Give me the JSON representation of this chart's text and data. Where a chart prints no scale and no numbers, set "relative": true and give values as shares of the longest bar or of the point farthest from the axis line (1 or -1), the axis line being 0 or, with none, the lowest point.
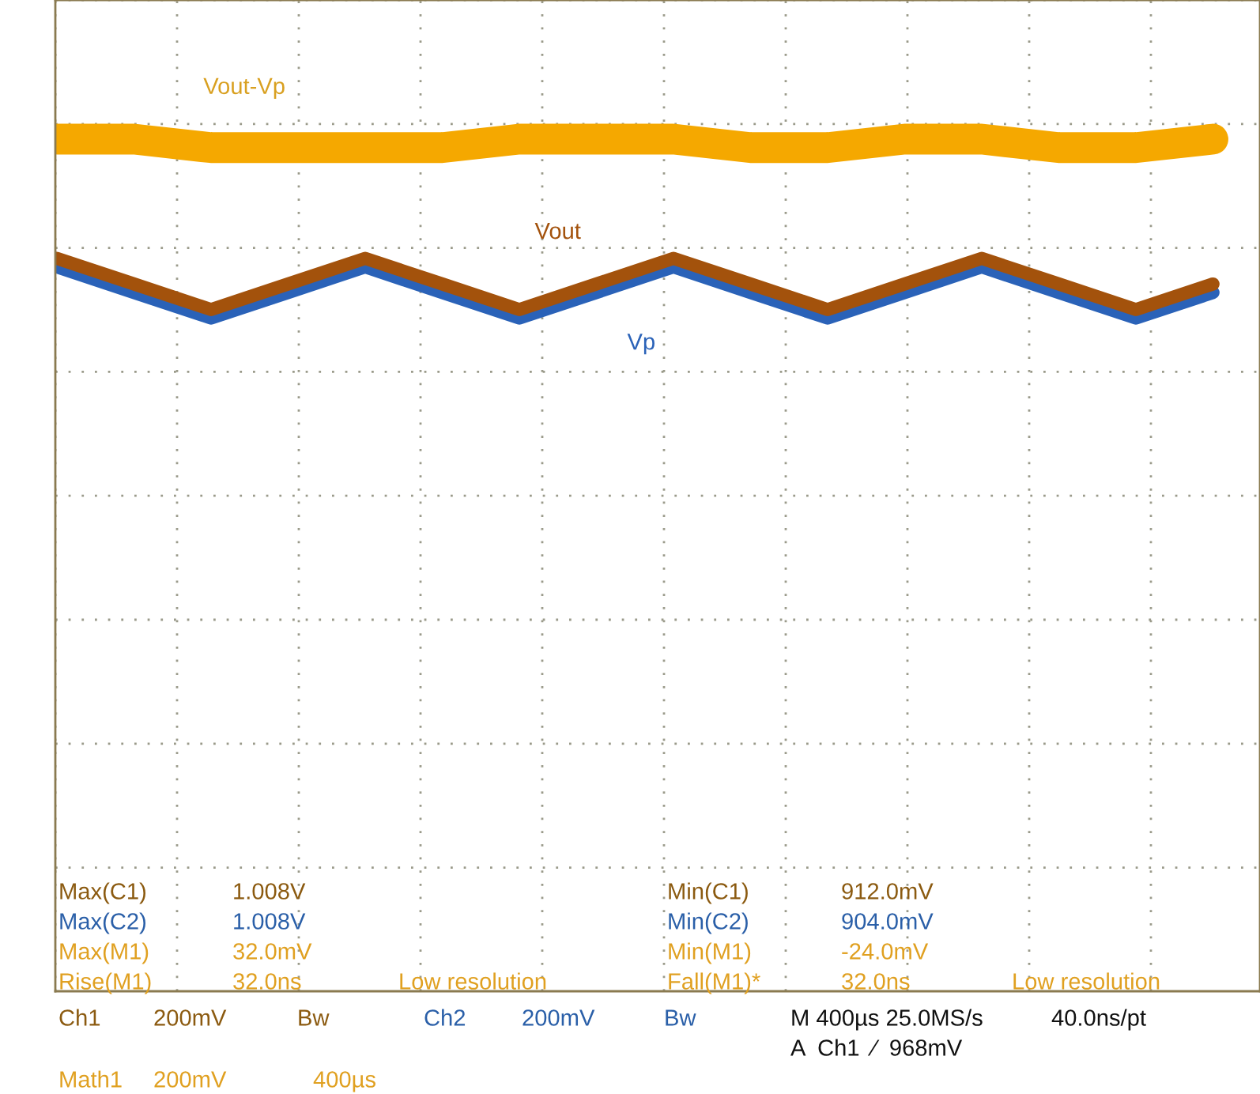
{
  "chart_data": {
    "type": "line",
    "relative": true,
    "grid": true,
    "categories": [
      null,
      null,
      null,
      null,
      null,
      null,
      null,
      null,
      null,
      null,
      null,
      null,
      null,
      null,
      null,
      null
    ],
    "series": [
      {
        "name": "Vout-Vp",
        "color": "#f5a800",
        "values": [
          1.0,
          1.0,
          0.99,
          0.99,
          0.99,
          0.99,
          1.0,
          1.0,
          1.0,
          0.99,
          0.99,
          1.0,
          1.0,
          0.99,
          0.99,
          1.0
        ]
      },
      {
        "name": "Vp",
        "color": "#2a62b8",
        "values": [
          0.85,
          0.82,
          0.79,
          0.82,
          0.85,
          0.82,
          0.79,
          0.82,
          0.85,
          0.82,
          0.79,
          0.82,
          0.85,
          0.82,
          0.79,
          0.82
        ]
      },
      {
        "name": "Vout",
        "color": "#a3520c",
        "values": [
          0.86,
          0.83,
          0.8,
          0.83,
          0.86,
          0.83,
          0.8,
          0.83,
          0.86,
          0.83,
          0.8,
          0.83,
          0.86,
          0.83,
          0.8,
          0.83
        ]
      }
    ],
    "annotations": [
      "Max(C1)",
      "1.008V",
      "Min(C1)",
      "912.0mV",
      "Max(C2)",
      "1.008V",
      "Min(C2)",
      "904.0mV",
      "Max(M1)",
      "32.0mV",
      "Min(M1)",
      "-24.0mV",
      "Rise(M1)",
      "32.0ns",
      "Low resolution",
      "Fall(M1)*",
      "32.0ns",
      "Low resolution",
      "Ch1",
      "200mV",
      "Bw",
      "Ch2",
      "200mV",
      "Bw",
      "M 400µs 25.0MS/s",
      "40.0ns/pt",
      "A  Ch1  ⁄  968mV",
      "Math1",
      "200mV",
      "400µs"
    ]
  }
}
